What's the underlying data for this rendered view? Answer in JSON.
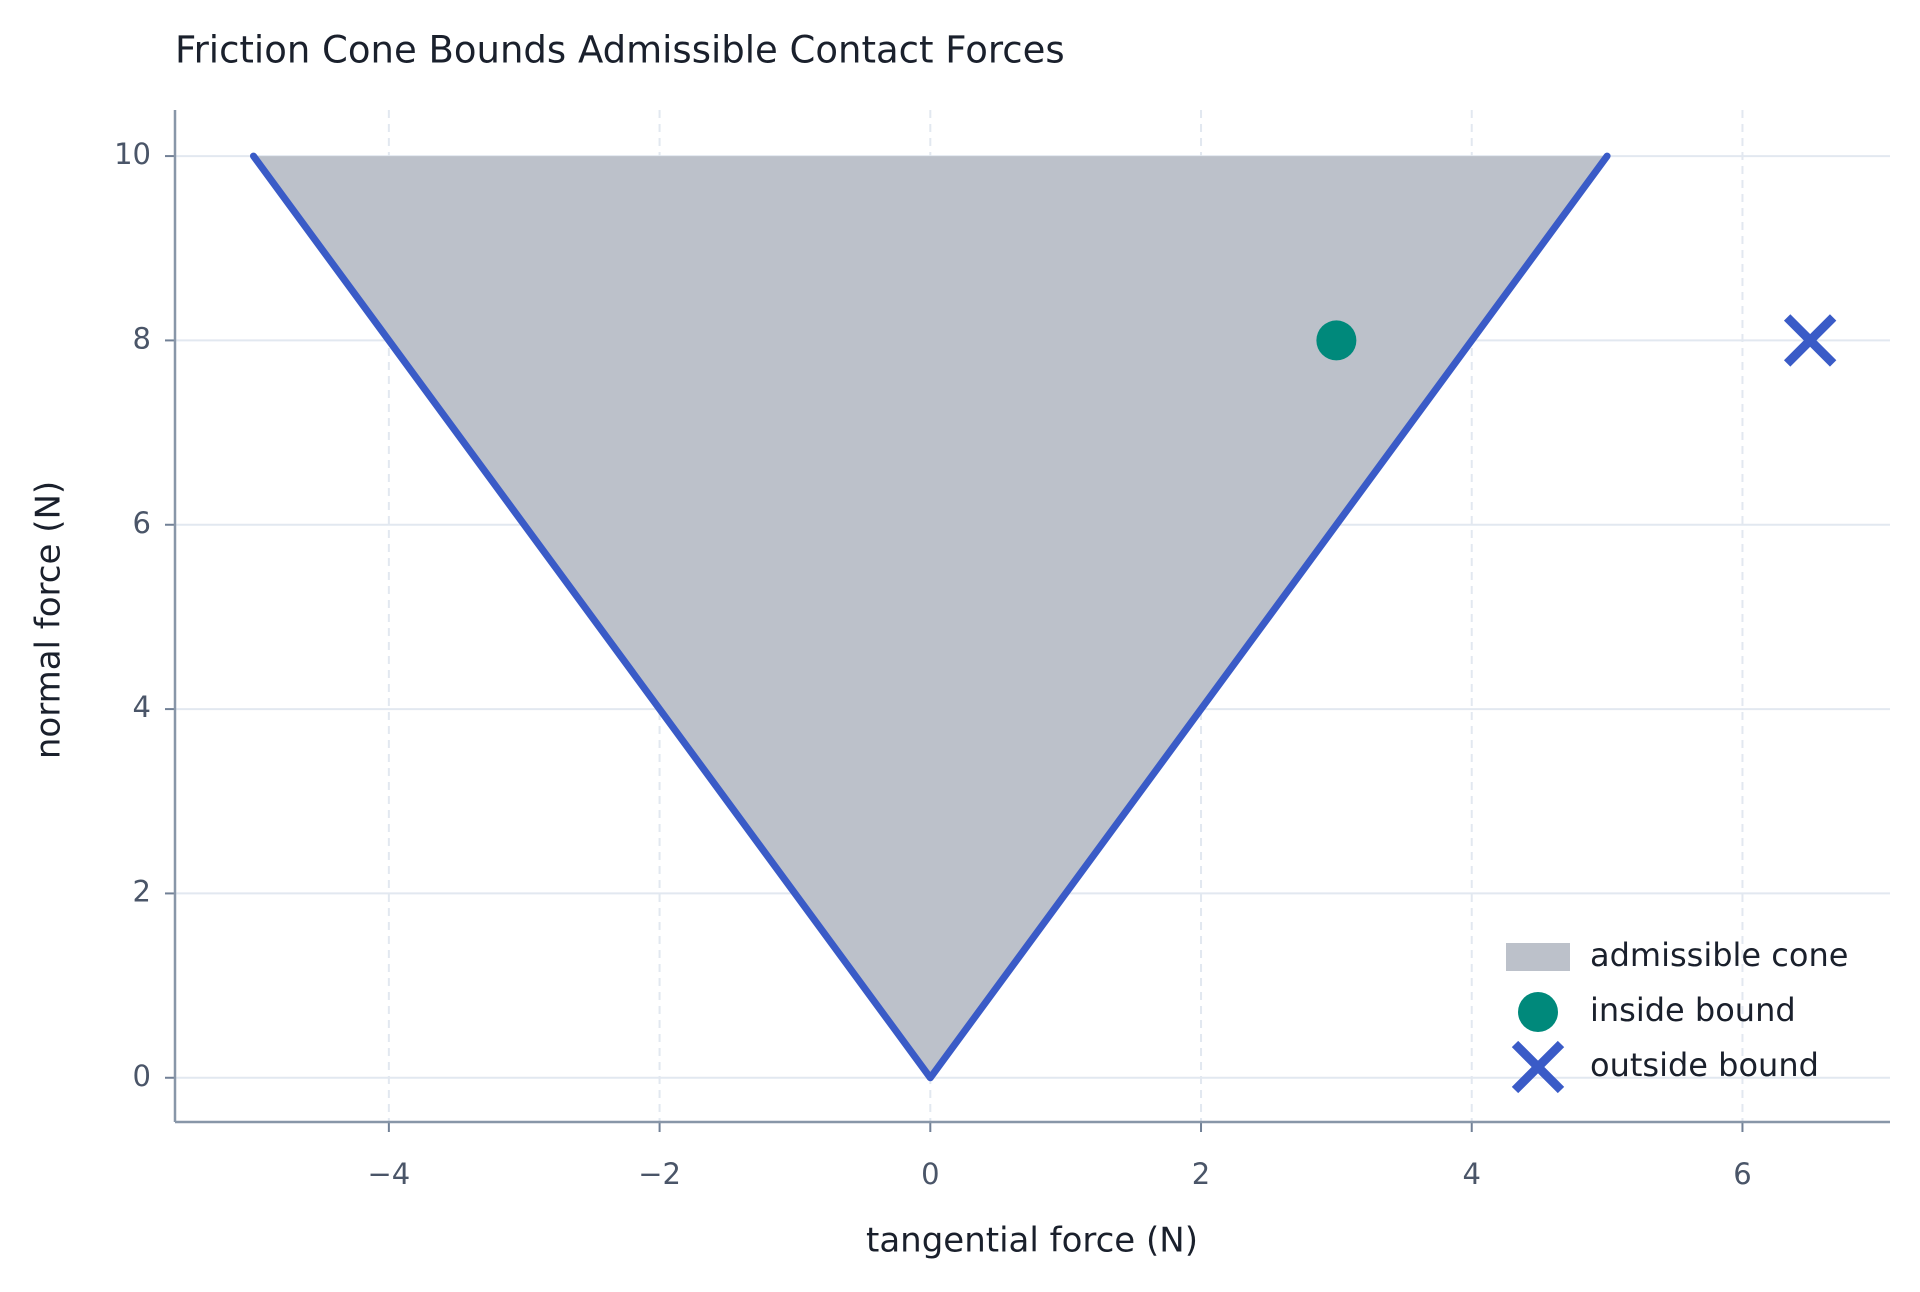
{
  "chart_data": {
    "type": "scatter",
    "title": "Friction Cone Bounds Admissible Contact Forces",
    "xlabel": "tangential force (N)",
    "ylabel": "normal force (N)",
    "xlim": [
      -5.58,
      7.09
    ],
    "ylim": [
      -0.48,
      10.5
    ],
    "xticks": [
      {
        "value": -4,
        "label": "−4"
      },
      {
        "value": -2,
        "label": "−2"
      },
      0,
      2,
      4,
      6
    ],
    "yticks": [
      0,
      2,
      4,
      6,
      8,
      10
    ],
    "grid": true,
    "legend": "lower right",
    "series": [
      {
        "name": "admissible cone",
        "kind": "area",
        "color": "#bcc1ca",
        "x": [
          -5,
          0,
          5
        ],
        "values": [
          10,
          0,
          10
        ]
      },
      {
        "kind": "line",
        "color": "#3a5bc7",
        "x": [
          -5,
          0,
          5
        ],
        "values": [
          10,
          0,
          10
        ]
      },
      {
        "name": "inside bound",
        "kind": "point",
        "marker": "o",
        "color": "#00897b",
        "x": [
          3
        ],
        "values": [
          8
        ]
      },
      {
        "name": "outside bound",
        "kind": "point",
        "marker": "x",
        "color": "#3a5bc7",
        "x": [
          6.5
        ],
        "values": [
          8
        ]
      }
    ]
  }
}
